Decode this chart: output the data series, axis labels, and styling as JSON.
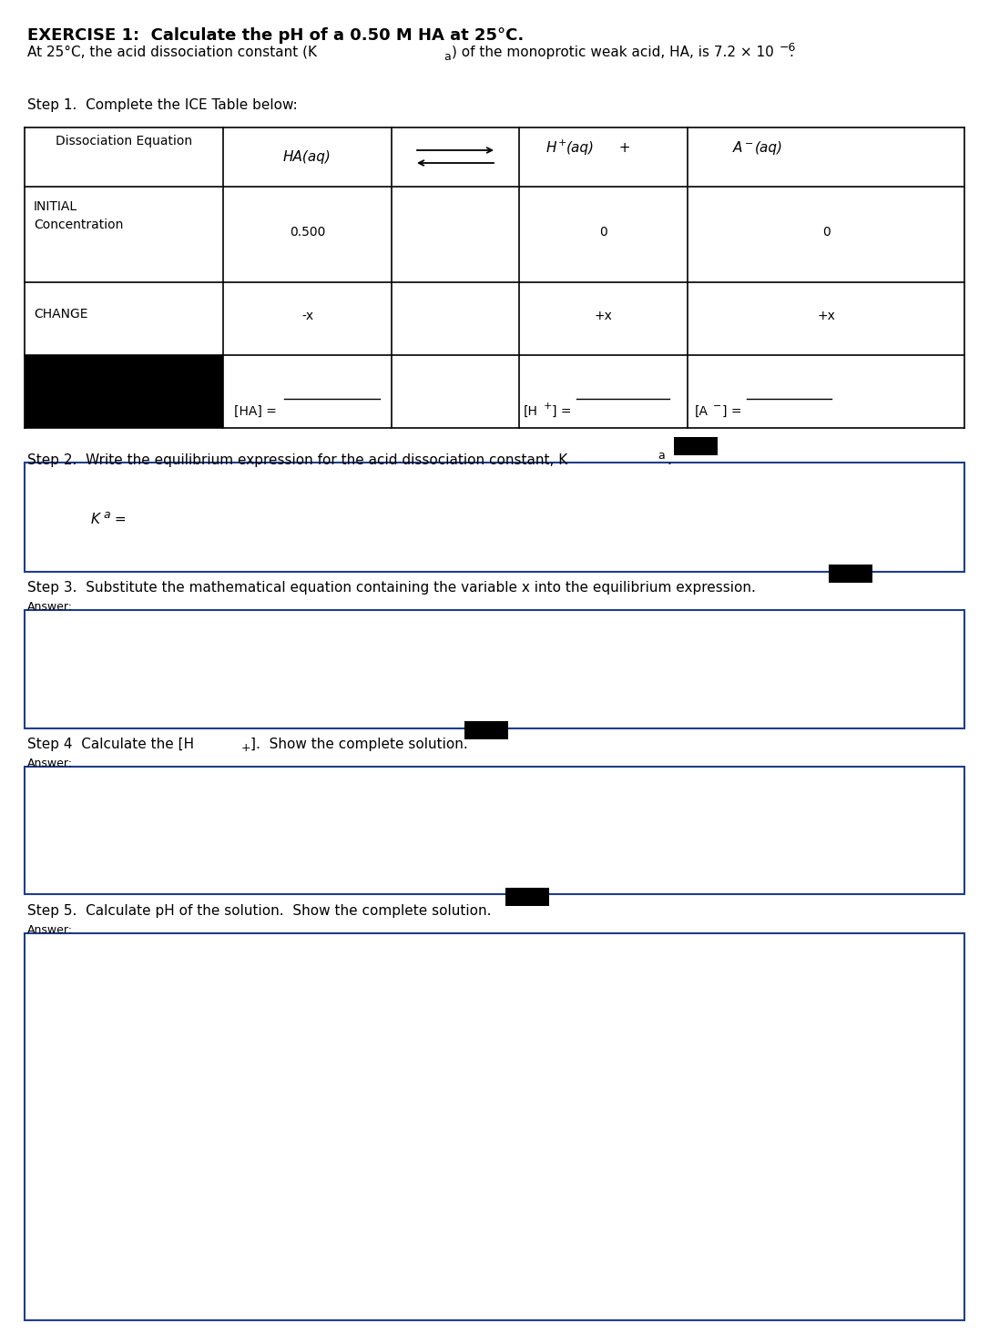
{
  "bg_color": "#ffffff",
  "box_border_color": "#1f3d8a",
  "font_main": "DejaVu Sans",
  "title1": "EXERCISE 1:  Calculate the pH of a 0.50 M HA at 25°C.",
  "line2_part1": "At 25°C, the acid dissociation constant (K",
  "line2_sub": "a",
  "line2_part2": ") of the monoprotic weak acid, HA, is 7.2 × 10",
  "line2_sup": "−6",
  "line2_end": ".",
  "step1": "Step 1.  Complete the ICE Table below:",
  "step2_text": "Step 2.  Write the equilibrium expression for the acid dissociation constant, K",
  "step2_sub": "a",
  "step2_dot": ".",
  "step3_text": "Step 3.  Substitute the mathematical equation containing the variable x into the equilibrium expression.",
  "step4_text1": "Step 4  Calculate the [H",
  "step4_sup": "+",
  "step4_text2": "].  Show the complete solution.",
  "step5_text": "Step 5.  Calculate pH of the solution.  Show the complete solution.",
  "answer": "Answer:",
  "ka_text": "K",
  "ka_sub": "a",
  "ka_eq": " ="
}
